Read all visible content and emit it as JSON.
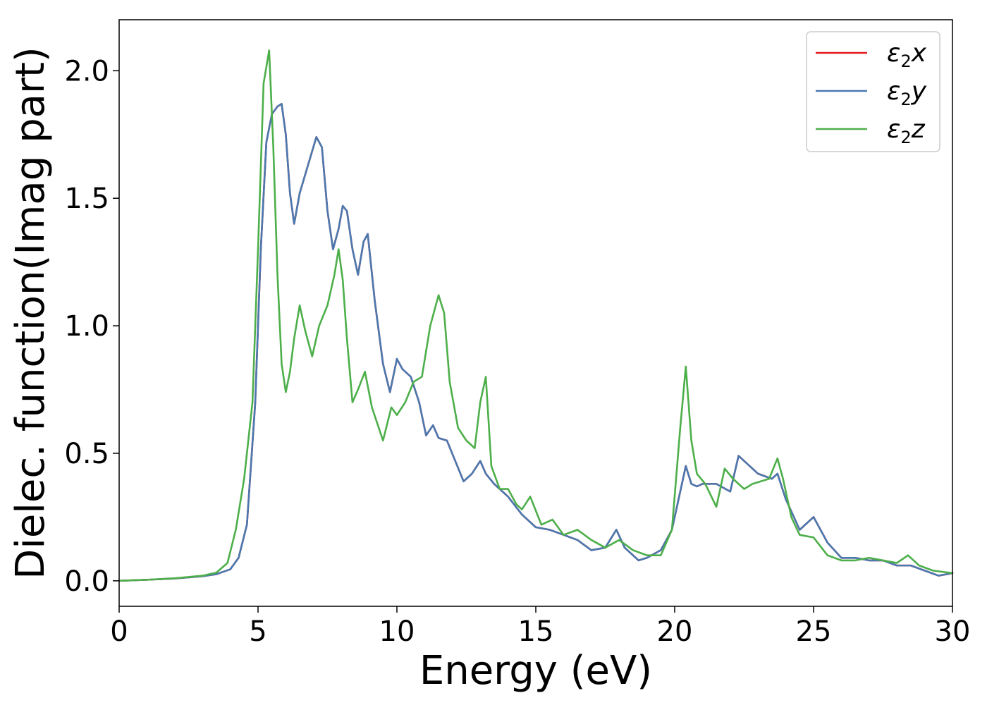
{
  "chart_data": {
    "type": "line",
    "xlabel": "Energy (eV)",
    "ylabel": "Dielec. function(Imag part)",
    "xlim": [
      0,
      30
    ],
    "ylim": [
      -0.1,
      2.2
    ],
    "xticks": [
      0,
      5,
      10,
      15,
      20,
      25,
      30
    ],
    "xtick_labels": [
      "0",
      "5",
      "10",
      "15",
      "20",
      "25",
      "30"
    ],
    "yticks": [
      0.0,
      0.5,
      1.0,
      1.5,
      2.0
    ],
    "ytick_labels": [
      "0.0",
      "0.5",
      "1.0",
      "1.5",
      "2.0"
    ],
    "grid": false,
    "legend_position": "top-right",
    "series": [
      {
        "name": "ε₂x",
        "legend_base": "ε",
        "legend_sub": "2",
        "legend_var": "x",
        "color": "#e41a1c",
        "x": [
          0,
          1,
          2,
          3,
          3.5,
          4,
          4.3,
          4.6,
          4.9,
          5.1,
          5.3,
          5.5,
          5.7,
          5.85,
          6,
          6.15,
          6.3,
          6.5,
          6.8,
          7.1,
          7.3,
          7.5,
          7.7,
          7.9,
          8.05,
          8.2,
          8.4,
          8.6,
          8.8,
          8.95,
          9.2,
          9.5,
          9.75,
          10,
          10.2,
          10.5,
          10.8,
          11.05,
          11.3,
          11.5,
          11.8,
          12.1,
          12.4,
          12.7,
          13.0,
          13.2,
          13.5,
          14.0,
          14.5,
          15.0,
          15.5,
          16.0,
          16.5,
          17.0,
          17.5,
          17.9,
          18.2,
          18.7,
          19.0,
          19.5,
          19.9,
          20.2,
          20.4,
          20.6,
          20.8,
          21.0,
          21.5,
          22.0,
          22.3,
          22.6,
          23.0,
          23.5,
          23.7,
          24.0,
          24.5,
          25.0,
          25.5,
          26.0,
          26.5,
          27.0,
          27.5,
          28.0,
          28.5,
          29.0,
          29.5,
          30
        ],
        "y": [
          0,
          0.004,
          0.009,
          0.018,
          0.026,
          0.045,
          0.09,
          0.22,
          0.7,
          1.3,
          1.72,
          1.83,
          1.86,
          1.87,
          1.75,
          1.52,
          1.4,
          1.52,
          1.63,
          1.74,
          1.7,
          1.45,
          1.3,
          1.38,
          1.47,
          1.45,
          1.3,
          1.2,
          1.33,
          1.36,
          1.1,
          0.85,
          0.74,
          0.87,
          0.83,
          0.8,
          0.7,
          0.57,
          0.61,
          0.56,
          0.55,
          0.47,
          0.39,
          0.42,
          0.47,
          0.42,
          0.38,
          0.33,
          0.26,
          0.21,
          0.2,
          0.18,
          0.16,
          0.12,
          0.13,
          0.2,
          0.13,
          0.08,
          0.09,
          0.12,
          0.2,
          0.35,
          0.45,
          0.38,
          0.37,
          0.38,
          0.38,
          0.35,
          0.49,
          0.46,
          0.42,
          0.4,
          0.42,
          0.32,
          0.2,
          0.25,
          0.15,
          0.09,
          0.09,
          0.08,
          0.08,
          0.06,
          0.06,
          0.04,
          0.02,
          0.03
        ]
      },
      {
        "name": "ε₂y",
        "legend_base": "ε",
        "legend_sub": "2",
        "legend_var": "y",
        "color": "#4a79b0",
        "x": [
          0,
          1,
          2,
          3,
          3.5,
          4,
          4.3,
          4.6,
          4.9,
          5.1,
          5.3,
          5.5,
          5.7,
          5.85,
          6,
          6.15,
          6.3,
          6.5,
          6.8,
          7.1,
          7.3,
          7.5,
          7.7,
          7.9,
          8.05,
          8.2,
          8.4,
          8.6,
          8.8,
          8.95,
          9.2,
          9.5,
          9.75,
          10,
          10.2,
          10.5,
          10.8,
          11.05,
          11.3,
          11.5,
          11.8,
          12.1,
          12.4,
          12.7,
          13.0,
          13.2,
          13.5,
          14.0,
          14.5,
          15.0,
          15.5,
          16.0,
          16.5,
          17.0,
          17.5,
          17.9,
          18.2,
          18.7,
          19.0,
          19.5,
          19.9,
          20.2,
          20.4,
          20.6,
          20.8,
          21.0,
          21.5,
          22.0,
          22.3,
          22.6,
          23.0,
          23.5,
          23.7,
          24.0,
          24.5,
          25.0,
          25.5,
          26.0,
          26.5,
          27.0,
          27.5,
          28.0,
          28.5,
          29.0,
          29.5,
          30
        ],
        "y": [
          0,
          0.004,
          0.009,
          0.018,
          0.026,
          0.045,
          0.09,
          0.22,
          0.7,
          1.3,
          1.72,
          1.83,
          1.86,
          1.87,
          1.75,
          1.52,
          1.4,
          1.52,
          1.63,
          1.74,
          1.7,
          1.45,
          1.3,
          1.38,
          1.47,
          1.45,
          1.3,
          1.2,
          1.33,
          1.36,
          1.1,
          0.85,
          0.74,
          0.87,
          0.83,
          0.8,
          0.7,
          0.57,
          0.61,
          0.56,
          0.55,
          0.47,
          0.39,
          0.42,
          0.47,
          0.42,
          0.38,
          0.33,
          0.26,
          0.21,
          0.2,
          0.18,
          0.16,
          0.12,
          0.13,
          0.2,
          0.13,
          0.08,
          0.09,
          0.12,
          0.2,
          0.35,
          0.45,
          0.38,
          0.37,
          0.38,
          0.38,
          0.35,
          0.49,
          0.46,
          0.42,
          0.4,
          0.42,
          0.32,
          0.2,
          0.25,
          0.15,
          0.09,
          0.09,
          0.08,
          0.08,
          0.06,
          0.06,
          0.04,
          0.02,
          0.03
        ]
      },
      {
        "name": "ε₂z",
        "legend_base": "ε",
        "legend_sub": "2",
        "legend_var": "z",
        "color": "#4daf4a",
        "x": [
          0,
          1,
          2,
          3,
          3.5,
          3.9,
          4.2,
          4.5,
          4.8,
          5.0,
          5.2,
          5.4,
          5.55,
          5.7,
          5.85,
          6.0,
          6.15,
          6.3,
          6.5,
          6.7,
          6.95,
          7.2,
          7.5,
          7.75,
          7.9,
          8.05,
          8.2,
          8.4,
          8.6,
          8.85,
          9.1,
          9.5,
          9.8,
          10.0,
          10.3,
          10.6,
          10.9,
          11.2,
          11.5,
          11.7,
          11.9,
          12.2,
          12.5,
          12.8,
          13.0,
          13.2,
          13.4,
          13.7,
          14.0,
          14.3,
          14.5,
          14.8,
          15.2,
          15.6,
          16.0,
          16.5,
          17.0,
          17.5,
          18.0,
          18.5,
          19.0,
          19.5,
          19.9,
          20.2,
          20.4,
          20.6,
          20.8,
          21.1,
          21.5,
          21.8,
          22.1,
          22.5,
          22.8,
          23.1,
          23.4,
          23.7,
          23.9,
          24.2,
          24.5,
          25.0,
          25.5,
          26.0,
          26.5,
          27.0,
          27.5,
          28.0,
          28.4,
          28.8,
          29.3,
          30
        ],
        "y": [
          0,
          0.004,
          0.01,
          0.02,
          0.032,
          0.07,
          0.2,
          0.4,
          0.7,
          1.3,
          1.95,
          2.08,
          1.7,
          1.2,
          0.85,
          0.74,
          0.82,
          0.95,
          1.08,
          0.98,
          0.88,
          1.0,
          1.08,
          1.2,
          1.3,
          1.18,
          0.95,
          0.7,
          0.75,
          0.82,
          0.68,
          0.55,
          0.68,
          0.65,
          0.7,
          0.78,
          0.8,
          1.0,
          1.12,
          1.05,
          0.78,
          0.6,
          0.55,
          0.52,
          0.7,
          0.8,
          0.45,
          0.36,
          0.36,
          0.3,
          0.28,
          0.33,
          0.22,
          0.24,
          0.18,
          0.2,
          0.16,
          0.13,
          0.16,
          0.12,
          0.1,
          0.1,
          0.2,
          0.6,
          0.84,
          0.55,
          0.42,
          0.38,
          0.29,
          0.44,
          0.4,
          0.36,
          0.38,
          0.39,
          0.4,
          0.48,
          0.4,
          0.25,
          0.18,
          0.17,
          0.1,
          0.08,
          0.08,
          0.09,
          0.08,
          0.07,
          0.1,
          0.06,
          0.04,
          0.03
        ]
      }
    ]
  }
}
